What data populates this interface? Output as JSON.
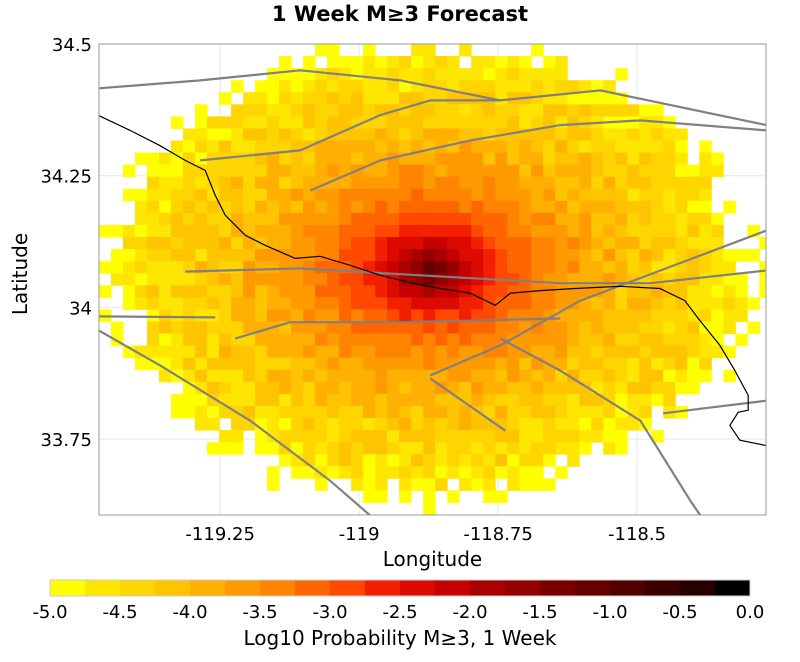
{
  "chart_data": {
    "type": "heatmap",
    "title": "1 Week M≥3 Forecast",
    "xlabel": "Longitude",
    "ylabel": "Latitude",
    "xlim": [
      -119.468,
      -118.268
    ],
    "ylim": [
      33.606,
      34.5
    ],
    "xticks": [
      {
        "v": -119.25,
        "label": "-119.25"
      },
      {
        "v": -119,
        "label": "-119"
      },
      {
        "v": -118.75,
        "label": "-118.75"
      },
      {
        "v": -118.5,
        "label": "-118.5"
      }
    ],
    "yticks": [
      {
        "v": 34.5,
        "label": "34.5"
      },
      {
        "v": 34.25,
        "label": "34.25"
      },
      {
        "v": 34,
        "label": "34"
      },
      {
        "v": 33.75,
        "label": "33.75"
      }
    ],
    "grid": true,
    "field_model": {
      "peak_lon": -118.87,
      "peak_lat": 34.07,
      "peak_value": -0.75,
      "decay_coef": 1.45,
      "decay_scale_deg": 0.03,
      "lon_stretch": 1.35,
      "cell_lon": 0.0216,
      "cell_lat": 0.0229,
      "noise": 0.35,
      "min_shown": -5.0
    },
    "colorbar": {
      "label": "Log10 Probability M≥3, 1 Week",
      "min": -5.0,
      "max": 0.0,
      "ticks": [
        "-5.0",
        "-4.5",
        "-4.0",
        "-3.5",
        "-3.0",
        "-2.5",
        "-2.0",
        "-1.5",
        "-1.0",
        "-0.5",
        "0.0"
      ],
      "colors": [
        "#ffff00",
        "#ffe600",
        "#ffd500",
        "#ffc400",
        "#ffb000",
        "#ff9a00",
        "#ff8400",
        "#ff6600",
        "#ff4800",
        "#f22000",
        "#dd0a00",
        "#c40000",
        "#a90000",
        "#920000",
        "#7a0000",
        "#650000",
        "#500000",
        "#3a0000",
        "#250000",
        "#000000"
      ]
    },
    "coastline": [
      [
        -119.468,
        34.364
      ],
      [
        -119.412,
        34.336
      ],
      [
        -119.358,
        34.307
      ],
      [
        -119.313,
        34.279
      ],
      [
        -119.277,
        34.26
      ],
      [
        -119.259,
        34.213
      ],
      [
        -119.241,
        34.175
      ],
      [
        -119.205,
        34.137
      ],
      [
        -119.169,
        34.118
      ],
      [
        -119.115,
        34.093
      ],
      [
        -119.07,
        34.097
      ],
      [
        -119.016,
        34.08
      ],
      [
        -118.962,
        34.061
      ],
      [
        -118.908,
        34.047
      ],
      [
        -118.854,
        34.036
      ],
      [
        -118.8,
        34.027
      ],
      [
        -118.755,
        34.004
      ],
      [
        -118.728,
        34.027
      ],
      [
        -118.674,
        34.032
      ],
      [
        -118.612,
        34.036
      ],
      [
        -118.531,
        34.04
      ],
      [
        -118.459,
        34.036
      ],
      [
        -118.414,
        34.013
      ],
      [
        -118.387,
        33.975
      ],
      [
        -118.351,
        33.928
      ],
      [
        -118.324,
        33.88
      ],
      [
        -118.3,
        33.833
      ],
      [
        -118.3,
        33.805
      ],
      [
        -118.318,
        33.801
      ],
      [
        -118.333,
        33.776
      ],
      [
        -118.315,
        33.748
      ],
      [
        -118.268,
        33.738
      ]
    ],
    "faults": [
      [
        [
          -119.313,
          34.068
        ],
        [
          -119.106,
          34.074
        ],
        [
          -118.89,
          34.061
        ],
        [
          -118.638,
          34.046
        ],
        [
          -118.476,
          34.046
        ],
        [
          -118.267,
          34.07
        ]
      ],
      [
        [
          -119.468,
          34.416
        ],
        [
          -119.286,
          34.431
        ],
        [
          -119.106,
          34.45
        ],
        [
          -118.926,
          34.431
        ],
        [
          -118.746,
          34.393
        ],
        [
          -118.566,
          34.412
        ],
        [
          -118.267,
          34.346
        ]
      ],
      [
        [
          -119.223,
          33.941
        ],
        [
          -119.124,
          33.972
        ],
        [
          -118.926,
          33.972
        ],
        [
          -118.638,
          33.979
        ]
      ],
      [
        [
          -119.468,
          33.956
        ],
        [
          -119.358,
          33.89
        ],
        [
          -119.196,
          33.785
        ],
        [
          -119.052,
          33.671
        ],
        [
          -118.98,
          33.605
        ]
      ],
      [
        [
          -118.746,
          33.941
        ],
        [
          -118.638,
          33.88
        ],
        [
          -118.494,
          33.785
        ],
        [
          -118.404,
          33.633
        ],
        [
          -118.386,
          33.605
        ]
      ],
      [
        [
          -118.872,
          33.871
        ],
        [
          -118.746,
          33.928
        ],
        [
          -118.602,
          34.013
        ],
        [
          -118.458,
          34.07
        ],
        [
          -118.267,
          34.146
        ]
      ],
      [
        [
          -119.468,
          33.983
        ],
        [
          -119.259,
          33.981
        ]
      ],
      [
        [
          -119.088,
          34.222
        ],
        [
          -118.962,
          34.279
        ],
        [
          -118.8,
          34.317
        ],
        [
          -118.638,
          34.346
        ],
        [
          -118.494,
          34.355
        ],
        [
          -118.267,
          34.336
        ]
      ],
      [
        [
          -118.872,
          33.865
        ],
        [
          -118.737,
          33.766
        ]
      ],
      [
        [
          -118.453,
          33.799
        ],
        [
          -118.267,
          33.823
        ]
      ],
      [
        [
          -119.286,
          34.279
        ],
        [
          -119.106,
          34.298
        ],
        [
          -118.962,
          34.365
        ],
        [
          -118.872,
          34.393
        ],
        [
          -118.746,
          34.393
        ]
      ]
    ]
  }
}
